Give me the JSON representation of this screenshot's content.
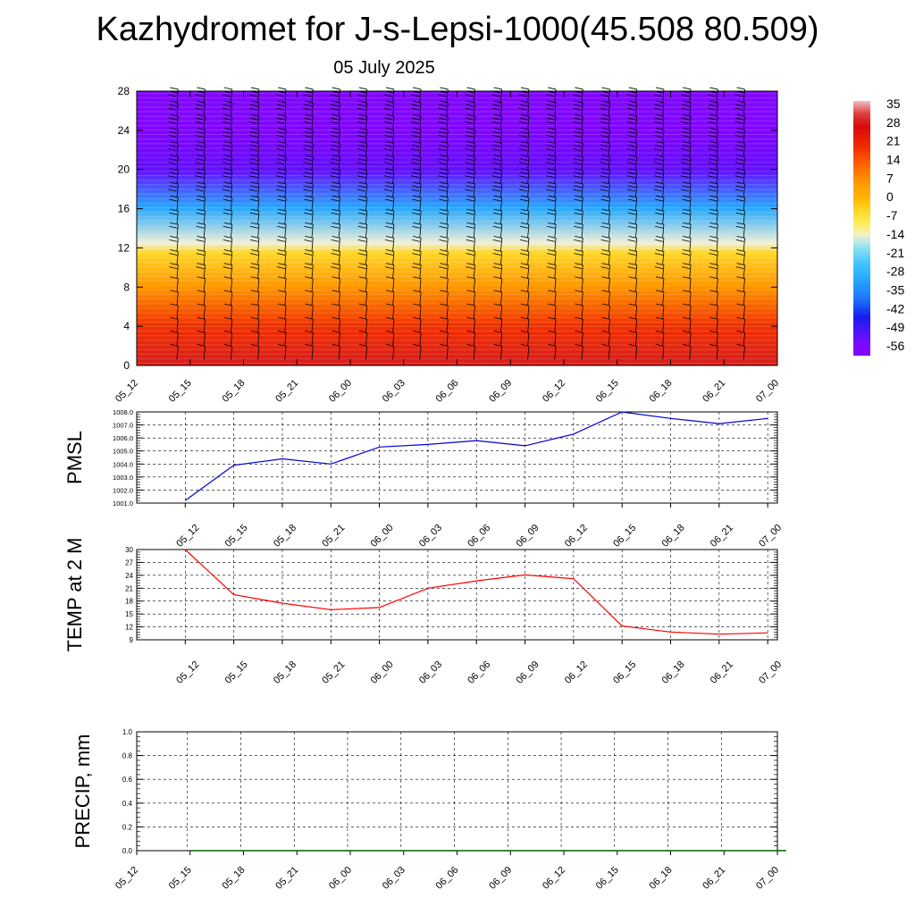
{
  "title": "Kazhydromet for J-s-Lepsi-1000(45.508 80.509)",
  "subtitle": "05 July 2025",
  "chart_data": [
    {
      "type": "heatmap",
      "description_variable": "temperature cross-section with wind barbs",
      "x_ticks": [
        "05_12",
        "05_15",
        "05_18",
        "05_21",
        "06_00",
        "06_03",
        "06_06",
        "06_09",
        "06_12",
        "06_15",
        "06_18",
        "06_21",
        "07_00"
      ],
      "y_ticks": [
        0,
        4,
        8,
        12,
        16,
        20,
        24,
        28
      ],
      "ylim": [
        0,
        28
      ],
      "colorbar": {
        "ticks": [
          35,
          28,
          21,
          14,
          7,
          0,
          -7,
          -14,
          -21,
          -28,
          -35,
          -42,
          -49,
          -56
        ],
        "range": [
          -60,
          38
        ]
      },
      "profile": [
        {
          "level": 0,
          "value": 30
        },
        {
          "level": 4,
          "value": 20
        },
        {
          "level": 8,
          "value": 7
        },
        {
          "level": 11.5,
          "value": -4
        },
        {
          "level": 12.5,
          "value": -14
        },
        {
          "level": 16,
          "value": -30
        },
        {
          "level": 20,
          "value": -53
        },
        {
          "level": 24,
          "value": -58
        },
        {
          "level": 28,
          "value": -57
        }
      ]
    },
    {
      "type": "line",
      "ylabel": "PMSL",
      "x": [
        "05_12",
        "05_15",
        "05_18",
        "05_21",
        "06_00",
        "06_03",
        "06_06",
        "06_09",
        "06_12",
        "06_15",
        "06_18",
        "06_21",
        "07_00"
      ],
      "ylim": [
        1001.0,
        1008.0
      ],
      "y_ticks": [
        "1001.0",
        "1002.0",
        "1003.0",
        "1004.0",
        "1005.0",
        "1006.0",
        "1007.0",
        "1008.0"
      ],
      "series": [
        {
          "color": "#0000dd",
          "values": [
            1001.2,
            1003.9,
            1004.4,
            1004.0,
            1005.3,
            1005.5,
            1005.8,
            1005.4,
            1006.3,
            1008.0,
            1007.5,
            1007.1,
            1007.5
          ]
        }
      ]
    },
    {
      "type": "line",
      "ylabel": "TEMP at 2 M",
      "x": [
        "05_12",
        "05_15",
        "05_18",
        "05_21",
        "06_00",
        "06_03",
        "06_06",
        "06_09",
        "06_12",
        "06_15",
        "06_18",
        "06_21",
        "07_00"
      ],
      "ylim": [
        9,
        30
      ],
      "y_ticks": [
        "9",
        "12",
        "15",
        "18",
        "21",
        "24",
        "27",
        "30"
      ],
      "series": [
        {
          "color": "#ff0000",
          "values": [
            30,
            19.5,
            17.5,
            16,
            16.5,
            21,
            22.7,
            24.1,
            23.2,
            12.2,
            10.8,
            10.3,
            10.6
          ]
        }
      ]
    },
    {
      "type": "line",
      "ylabel": "PRECIP, mm",
      "x": [
        "05_12",
        "05_15",
        "05_18",
        "05_21",
        "06_00",
        "06_03",
        "06_06",
        "06_09",
        "06_12",
        "06_15",
        "06_18",
        "06_21",
        "07_00"
      ],
      "ylim": [
        0.0,
        1.0
      ],
      "y_ticks": [
        "0.0",
        "0.2",
        "0.4",
        "0.6",
        "0.8",
        "1.0"
      ],
      "series": [
        {
          "color": "#006400",
          "values": [
            0,
            0,
            0,
            0,
            0,
            0,
            0,
            0,
            0,
            0,
            0,
            0,
            0
          ]
        }
      ]
    }
  ]
}
